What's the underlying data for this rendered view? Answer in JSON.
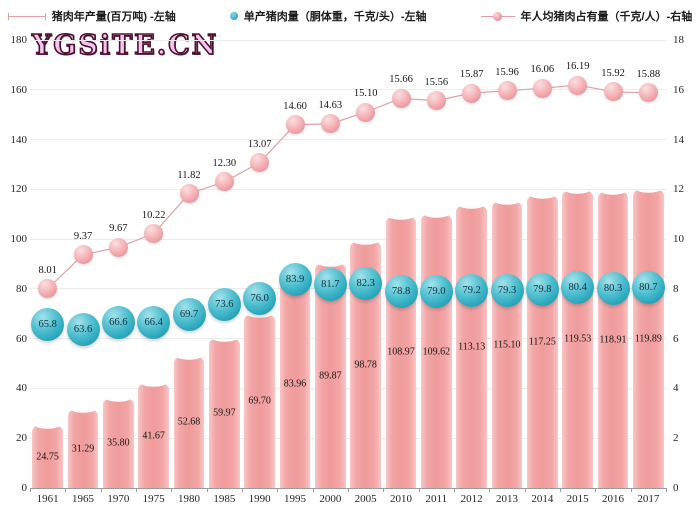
{
  "watermark": "YGSiTE.CN",
  "legend": [
    {
      "label": "猪肉年产量(百万吨) -左轴",
      "marker": "errorbar-line-marker"
    },
    {
      "label": "单产猪肉量（胴体重，千克/头）-左轴",
      "marker": "teal-dot-marker"
    },
    {
      "label": "年人均猪肉占有量（千克/人）-右轴",
      "marker": "line-with-sphere-marker"
    }
  ],
  "colors": {
    "bar_fill": "#f3a6a6",
    "bar_edge": "#f9c6c6",
    "teal_dot": "#3bb4c8",
    "pink_marker": "#f2a5a9",
    "line": "#e2a0a6",
    "grid": "#ececec",
    "axis": "#9b9b9b",
    "watermark_fill": "#f6c4f3",
    "watermark_outline": "#4d1230"
  },
  "chart_data": {
    "type": "bar",
    "subtype": "combo-bar-point-line",
    "categories": [
      "1961",
      "1965",
      "1970",
      "1975",
      "1980",
      "1985",
      "1990",
      "1995",
      "2000",
      "2005",
      "2010",
      "2011",
      "2012",
      "2013",
      "2014",
      "2015",
      "2016",
      "2017"
    ],
    "series": [
      {
        "name": "猪肉年产量(百万吨) -左轴",
        "type": "bar",
        "axis": "left",
        "decimals": 2,
        "values": [
          24.75,
          31.29,
          35.8,
          41.67,
          52.68,
          59.97,
          69.7,
          83.96,
          89.87,
          98.78,
          108.97,
          109.62,
          113.13,
          115.1,
          117.25,
          119.53,
          118.91,
          119.89
        ]
      },
      {
        "name": "单产猪肉量（胴体重，千克/头）-左轴",
        "type": "point",
        "axis": "left",
        "decimals": 1,
        "values": [
          65.8,
          63.6,
          66.6,
          66.4,
          69.7,
          73.6,
          76.0,
          83.9,
          81.7,
          82.3,
          78.8,
          79.0,
          79.2,
          79.3,
          79.8,
          80.4,
          80.3,
          80.7
        ]
      },
      {
        "name": "年人均猪肉占有量（千克/人）-右轴",
        "type": "line",
        "axis": "right",
        "decimals": 2,
        "values": [
          8.01,
          9.37,
          9.67,
          10.22,
          11.82,
          12.3,
          13.07,
          14.6,
          14.63,
          15.1,
          15.66,
          15.56,
          15.87,
          15.96,
          16.06,
          16.19,
          15.92,
          15.88
        ]
      }
    ],
    "left_axis": {
      "min": 0,
      "max": 180,
      "step": 20
    },
    "right_axis": {
      "min": 0,
      "max": 18,
      "step": 2
    },
    "grid": true,
    "legend_position": "top"
  }
}
